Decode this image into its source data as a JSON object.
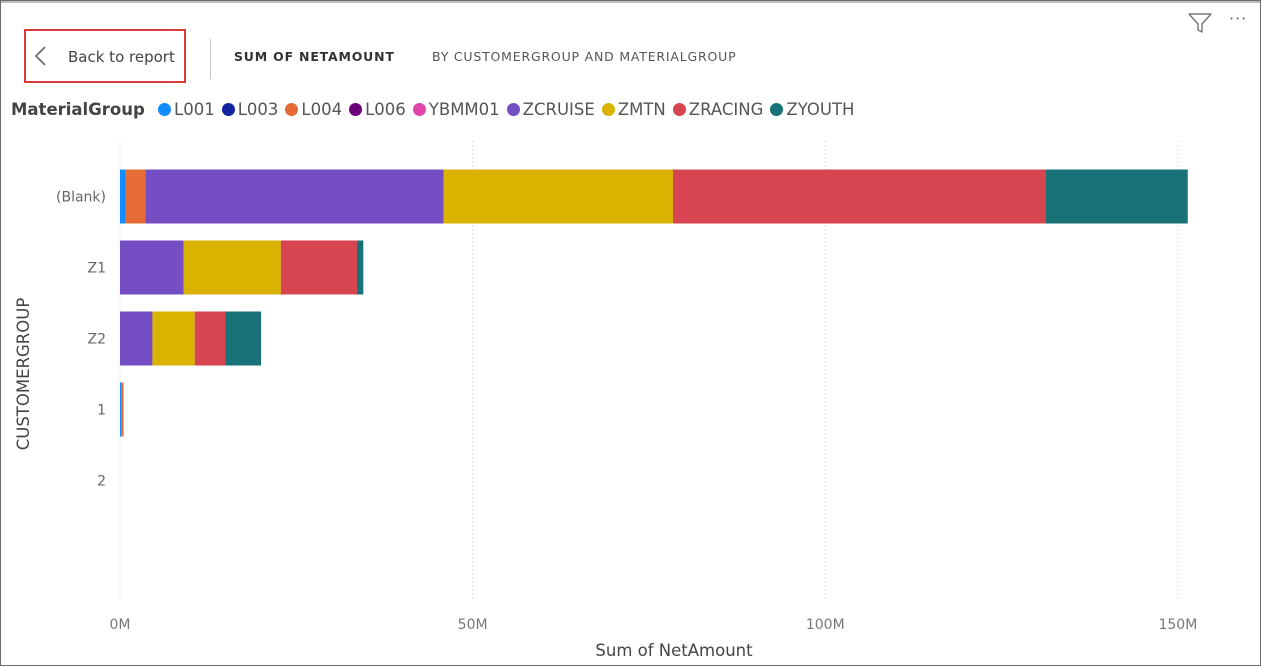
{
  "header": {
    "back_label": "Back to report",
    "title": "SUM OF NETAMOUNT",
    "subtitle": "BY CUSTOMERGROUP AND MATERIALGROUP"
  },
  "icons": {
    "filter": "filter-icon",
    "more": "more-options-icon",
    "back": "chevron-left-icon"
  },
  "legend": {
    "title": "MaterialGroup",
    "items": [
      {
        "label": "L001",
        "color": "#118dff"
      },
      {
        "label": "L003",
        "color": "#12239e"
      },
      {
        "label": "L004",
        "color": "#e66c37"
      },
      {
        "label": "L006",
        "color": "#6b007b"
      },
      {
        "label": "YBMM01",
        "color": "#e044a7"
      },
      {
        "label": "ZCRUISE",
        "color": "#744ec2"
      },
      {
        "label": "ZMTN",
        "color": "#d9b300"
      },
      {
        "label": "ZRACING",
        "color": "#d64550"
      },
      {
        "label": "ZYOUTH",
        "color": "#197278"
      }
    ]
  },
  "chart_data": {
    "type": "bar",
    "orientation": "horizontal",
    "stacked": true,
    "title": "SUM OF NETAMOUNT BY CUSTOMERGROUP AND MATERIALGROUP",
    "xlabel": "Sum of NetAmount",
    "ylabel": "CUSTOMERGROUP",
    "categories": [
      "(Blank)",
      "Z1",
      "Z2",
      "1",
      "2"
    ],
    "xlim": [
      0,
      152000000
    ],
    "xticks": [
      0,
      50000000,
      100000000,
      150000000
    ],
    "xtick_labels": [
      "0M",
      "50M",
      "100M",
      "150M"
    ],
    "grid": true,
    "legend_position": "top",
    "series": [
      {
        "name": "L001",
        "color": "#118dff",
        "values": [
          0.8,
          0,
          0,
          0.2,
          0
        ]
      },
      {
        "name": "L003",
        "color": "#12239e",
        "values": [
          0,
          0,
          0,
          0,
          0
        ]
      },
      {
        "name": "L004",
        "color": "#e66c37",
        "values": [
          2.8,
          0,
          0,
          0.3,
          0
        ]
      },
      {
        "name": "L006",
        "color": "#6b007b",
        "values": [
          0,
          0,
          0,
          0,
          0
        ]
      },
      {
        "name": "YBMM01",
        "color": "#e044a7",
        "values": [
          0,
          0,
          0,
          0,
          0
        ]
      },
      {
        "name": "ZCRUISE",
        "color": "#744ec2",
        "values": [
          42.3,
          9.0,
          4.6,
          0,
          0
        ]
      },
      {
        "name": "ZMTN",
        "color": "#d9b300",
        "values": [
          32.5,
          13.8,
          6.0,
          0,
          0
        ]
      },
      {
        "name": "ZRACING",
        "color": "#d64550",
        "values": [
          52.8,
          10.8,
          4.3,
          0,
          0
        ]
      },
      {
        "name": "ZYOUTH",
        "color": "#197278",
        "values": [
          20.2,
          0.9,
          5.1,
          0,
          0
        ]
      }
    ],
    "value_unit": "M"
  }
}
